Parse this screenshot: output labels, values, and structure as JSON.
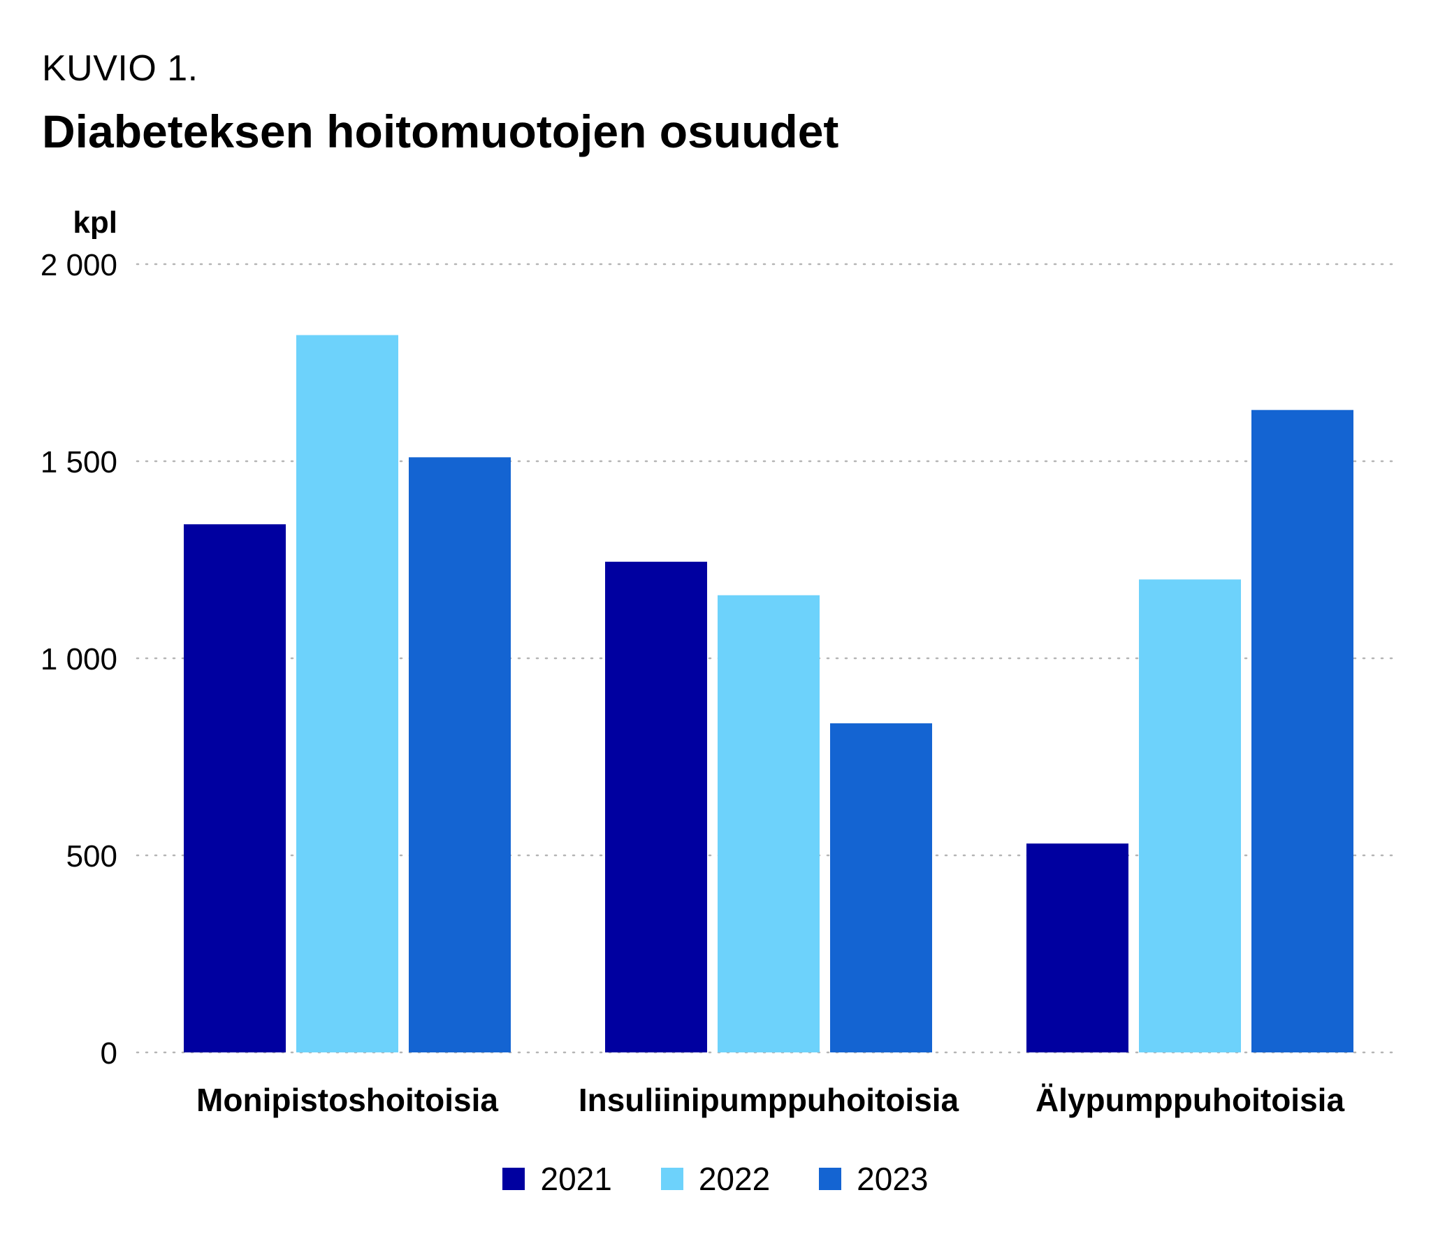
{
  "header": {
    "figure_label": "KUVIO 1.",
    "title": "Diabeteksen hoitomuotojen osuudet"
  },
  "chart_data": {
    "type": "bar",
    "title": "Diabeteksen hoitomuotojen osuudet",
    "ylabel": "kpl",
    "xlabel": "",
    "ylim": [
      0,
      2000
    ],
    "yticks": [
      0,
      500,
      1000,
      1500,
      2000
    ],
    "ytick_labels": [
      "0",
      "500",
      "1 000",
      "1 500",
      "2 000"
    ],
    "grid": "horizontal dotted",
    "legend_position": "bottom-center",
    "categories": [
      "Monipistoshoitoisia",
      "Insuliinipumppuhoitoisia",
      "Älypumppuhoitoisia"
    ],
    "series": [
      {
        "name": "2021",
        "color": "#0000a0",
        "values": [
          1340,
          1245,
          530
        ]
      },
      {
        "name": "2022",
        "color": "#6dd2fb",
        "values": [
          1820,
          1160,
          1200
        ]
      },
      {
        "name": "2023",
        "color": "#1464d2",
        "values": [
          1510,
          835,
          1630
        ]
      }
    ]
  }
}
